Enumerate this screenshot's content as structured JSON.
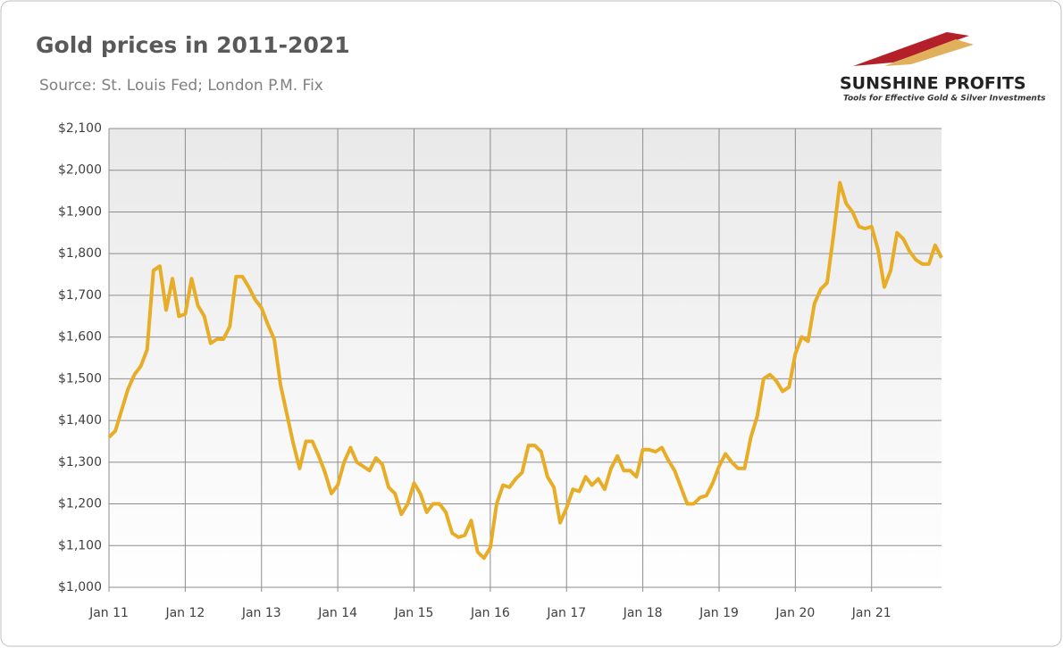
{
  "chart_data": {
    "type": "line",
    "title": "Gold prices in 2011-2021",
    "subtitle": "Source: St. Louis Fed; London P.M. Fix",
    "logo": {
      "name": "SUNSHINE PROFITS",
      "tagline": "Tools for Effective Gold & Silver Investments"
    },
    "x": [
      "2011-01",
      "2011-02",
      "2011-03",
      "2011-04",
      "2011-05",
      "2011-06",
      "2011-07",
      "2011-08",
      "2011-09",
      "2011-10",
      "2011-11",
      "2011-12",
      "2012-01",
      "2012-02",
      "2012-03",
      "2012-04",
      "2012-05",
      "2012-06",
      "2012-07",
      "2012-08",
      "2012-09",
      "2012-10",
      "2012-11",
      "2012-12",
      "2013-01",
      "2013-02",
      "2013-03",
      "2013-04",
      "2013-05",
      "2013-06",
      "2013-07",
      "2013-08",
      "2013-09",
      "2013-10",
      "2013-11",
      "2013-12",
      "2014-01",
      "2014-02",
      "2014-03",
      "2014-04",
      "2014-05",
      "2014-06",
      "2014-07",
      "2014-08",
      "2014-09",
      "2014-10",
      "2014-11",
      "2014-12",
      "2015-01",
      "2015-02",
      "2015-03",
      "2015-04",
      "2015-05",
      "2015-06",
      "2015-07",
      "2015-08",
      "2015-09",
      "2015-10",
      "2015-11",
      "2015-12",
      "2016-01",
      "2016-02",
      "2016-03",
      "2016-04",
      "2016-05",
      "2016-06",
      "2016-07",
      "2016-08",
      "2016-09",
      "2016-10",
      "2016-11",
      "2016-12",
      "2017-01",
      "2017-02",
      "2017-03",
      "2017-04",
      "2017-05",
      "2017-06",
      "2017-07",
      "2017-08",
      "2017-09",
      "2017-10",
      "2017-11",
      "2017-12",
      "2018-01",
      "2018-02",
      "2018-03",
      "2018-04",
      "2018-05",
      "2018-06",
      "2018-07",
      "2018-08",
      "2018-09",
      "2018-10",
      "2018-11",
      "2018-12",
      "2019-01",
      "2019-02",
      "2019-03",
      "2019-04",
      "2019-05",
      "2019-06",
      "2019-07",
      "2019-08",
      "2019-09",
      "2019-10",
      "2019-11",
      "2019-12",
      "2020-01",
      "2020-02",
      "2020-03",
      "2020-04",
      "2020-05",
      "2020-06",
      "2020-07",
      "2020-08",
      "2020-09",
      "2020-10",
      "2020-11",
      "2020-12",
      "2021-01",
      "2021-02",
      "2021-03",
      "2021-04",
      "2021-05",
      "2021-06",
      "2021-07",
      "2021-08",
      "2021-09",
      "2021-10",
      "2021-11",
      "2021-12"
    ],
    "series": [
      {
        "name": "Gold price",
        "color": "#e8ad26",
        "values": [
          1360,
          1375,
          1425,
          1475,
          1510,
          1530,
          1570,
          1760,
          1770,
          1665,
          1740,
          1650,
          1655,
          1740,
          1675,
          1650,
          1585,
          1595,
          1595,
          1625,
          1745,
          1745,
          1720,
          1690,
          1670,
          1630,
          1595,
          1485,
          1415,
          1345,
          1285,
          1350,
          1350,
          1315,
          1275,
          1225,
          1245,
          1300,
          1335,
          1300,
          1290,
          1280,
          1310,
          1295,
          1240,
          1225,
          1175,
          1200,
          1250,
          1225,
          1180,
          1200,
          1200,
          1180,
          1130,
          1120,
          1125,
          1160,
          1085,
          1070,
          1095,
          1200,
          1245,
          1240,
          1260,
          1275,
          1340,
          1340,
          1325,
          1265,
          1240,
          1155,
          1190,
          1235,
          1230,
          1265,
          1245,
          1260,
          1235,
          1285,
          1315,
          1280,
          1280,
          1265,
          1330,
          1330,
          1325,
          1335,
          1305,
          1280,
          1240,
          1200,
          1200,
          1215,
          1220,
          1250,
          1290,
          1320,
          1300,
          1285,
          1285,
          1360,
          1410,
          1500,
          1510,
          1495,
          1470,
          1480,
          1560,
          1600,
          1590,
          1680,
          1715,
          1730,
          1845,
          1970,
          1920,
          1900,
          1865,
          1860,
          1865,
          1810,
          1720,
          1760,
          1850,
          1835,
          1805,
          1785,
          1775,
          1775,
          1820,
          1790
        ]
      }
    ],
    "xlim": [
      "2011-01",
      "2021-12"
    ],
    "xticks": [
      {
        "value": "2011-01",
        "label": "Jan 11"
      },
      {
        "value": "2012-01",
        "label": "Jan 12"
      },
      {
        "value": "2013-01",
        "label": "Jan 13"
      },
      {
        "value": "2014-01",
        "label": "Jan 14"
      },
      {
        "value": "2015-01",
        "label": "Jan 15"
      },
      {
        "value": "2016-01",
        "label": "Jan 16"
      },
      {
        "value": "2017-01",
        "label": "Jan 17"
      },
      {
        "value": "2018-01",
        "label": "Jan 18"
      },
      {
        "value": "2019-01",
        "label": "Jan 19"
      },
      {
        "value": "2020-01",
        "label": "Jan 20"
      },
      {
        "value": "2021-01",
        "label": "Jan 21"
      }
    ],
    "ylim": [
      1000,
      2100
    ],
    "yticks": [
      {
        "value": 1000,
        "label": "$1,000"
      },
      {
        "value": 1100,
        "label": "$1,100"
      },
      {
        "value": 1200,
        "label": "$1,200"
      },
      {
        "value": 1300,
        "label": "$1,300"
      },
      {
        "value": 1400,
        "label": "$1,400"
      },
      {
        "value": 1500,
        "label": "$1,500"
      },
      {
        "value": 1600,
        "label": "$1,600"
      },
      {
        "value": 1700,
        "label": "$1,700"
      },
      {
        "value": 1800,
        "label": "$1,800"
      },
      {
        "value": 1900,
        "label": "$1,900"
      },
      {
        "value": 2000,
        "label": "$2,000"
      },
      {
        "value": 2100,
        "label": "$2,100"
      }
    ],
    "grid": true
  }
}
